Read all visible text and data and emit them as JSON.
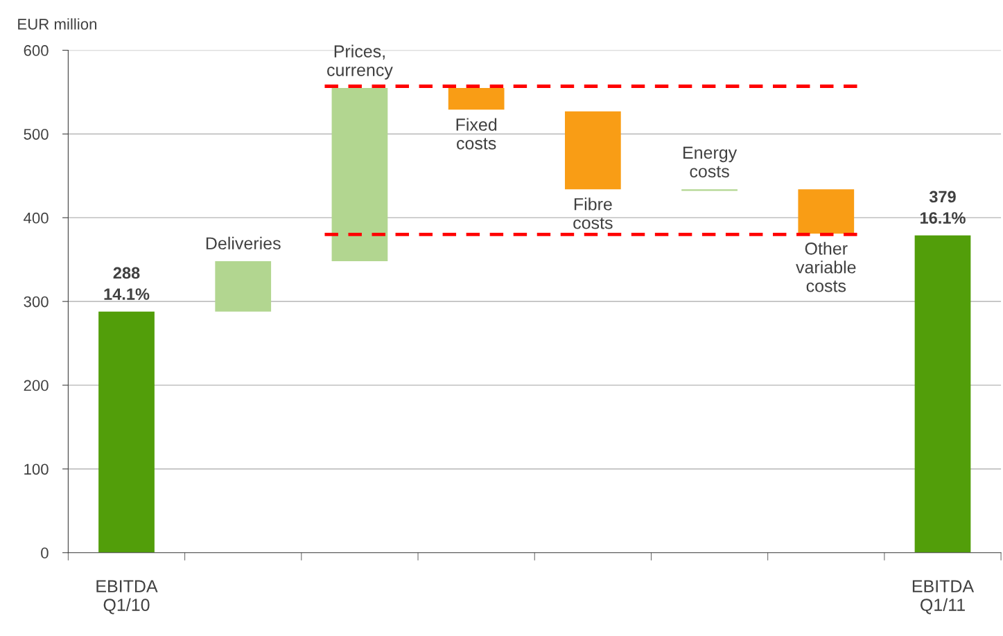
{
  "chart_data": {
    "type": "bar",
    "ylabel": "EUR million",
    "categories": [
      "EBITDA\nQ1/10",
      null,
      null,
      null,
      null,
      null,
      null,
      "EBITDA\nQ1/11"
    ],
    "values": [
      288,
      60,
      207,
      -26,
      -93,
      2,
      -53,
      379
    ],
    "base": [
      0,
      288,
      348,
      555,
      527,
      432,
      434,
      0
    ],
    "colors": [
      "#529e0a",
      "#b2d690",
      "#b2d690",
      "#f99d15",
      "#f99d15",
      "#b2d690",
      "#f99d15",
      "#529e0a"
    ],
    "value_labels": [
      "288\n14.1%",
      null,
      null,
      null,
      null,
      null,
      null,
      "379\n16.1%"
    ],
    "annotations": [
      "Deliveries",
      "Prices,\ncurrency",
      "Fixed\ncosts",
      "Fibre\ncosts",
      "Energy\ncosts",
      "Other\nvariable\ncosts"
    ],
    "ref_lines": [
      {
        "axis": "y",
        "value": 557,
        "color": "#ff0000",
        "line_style": "dashed"
      },
      {
        "axis": "y",
        "value": 380,
        "color": "#ff0000",
        "line_style": "dashed"
      }
    ],
    "ylim": [
      0,
      600
    ],
    "yticks": [
      0,
      100,
      200,
      300,
      400,
      500,
      600
    ],
    "grid": "y"
  }
}
